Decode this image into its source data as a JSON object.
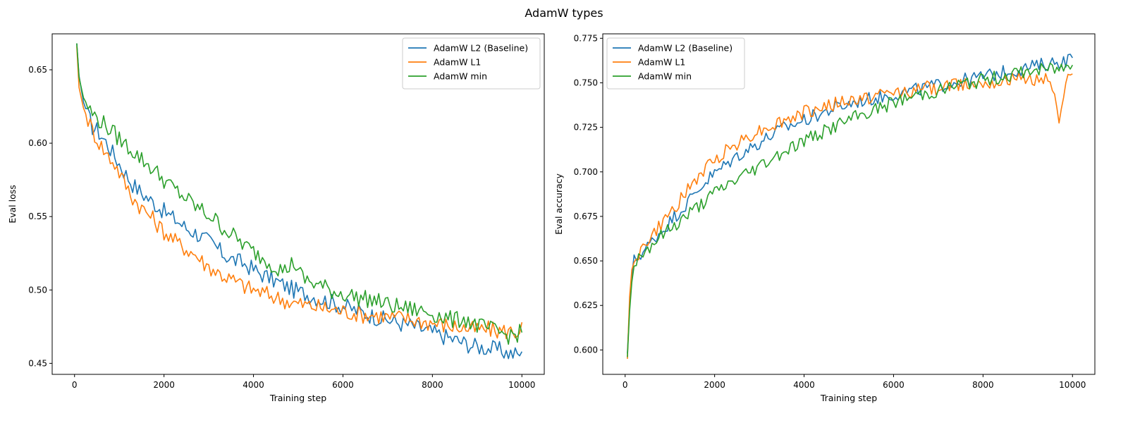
{
  "figure": {
    "title": "AdamW types"
  },
  "colors": {
    "L2": "#1f77b4",
    "L1": "#ff7f0e",
    "min": "#2ca02c"
  },
  "chart_data": [
    {
      "type": "line",
      "xlabel": "Training step",
      "ylabel": "Eval loss",
      "xlim": [
        -500,
        10500
      ],
      "ylim": [
        0.4425,
        0.6745
      ],
      "xticks": [
        0,
        2000,
        4000,
        6000,
        8000,
        10000
      ],
      "yticks": [
        0.45,
        0.5,
        0.55,
        0.6,
        0.65
      ],
      "ytick_labels": [
        "0.45",
        "0.50",
        "0.55",
        "0.60",
        "0.65"
      ],
      "legend_position": "upper right",
      "grid": false,
      "x": [
        50,
        100,
        200,
        300,
        400,
        500,
        700,
        900,
        1100,
        1300,
        1500,
        1700,
        1900,
        2100,
        2300,
        2500,
        2700,
        2900,
        3100,
        3300,
        3500,
        3700,
        3900,
        4100,
        4300,
        4500,
        4700,
        4900,
        5100,
        5300,
        5500,
        5700,
        5900,
        6100,
        6300,
        6500,
        6700,
        6900,
        7100,
        7300,
        7500,
        7700,
        7900,
        8100,
        8300,
        8500,
        8700,
        8900,
        9100,
        9300,
        9500,
        9700,
        9900,
        10000
      ],
      "series": [
        {
          "name": "AdamW L2 (Baseline)",
          "color": "#1f77b4",
          "values": [
            0.668,
            0.646,
            0.628,
            0.619,
            0.611,
            0.609,
            0.601,
            0.591,
            0.581,
            0.572,
            0.566,
            0.561,
            0.556,
            0.551,
            0.547,
            0.542,
            0.539,
            0.535,
            0.531,
            0.525,
            0.521,
            0.519,
            0.516,
            0.512,
            0.509,
            0.506,
            0.503,
            0.5,
            0.498,
            0.496,
            0.494,
            0.492,
            0.49,
            0.488,
            0.486,
            0.484,
            0.482,
            0.48,
            0.479,
            0.477,
            0.476,
            0.474,
            0.472,
            0.47,
            0.468,
            0.466,
            0.464,
            0.462,
            0.461,
            0.46,
            0.459,
            0.457,
            0.456,
            0.458
          ]
        },
        {
          "name": "AdamW L1",
          "color": "#ff7f0e",
          "values": [
            0.666,
            0.638,
            0.624,
            0.616,
            0.609,
            0.603,
            0.593,
            0.586,
            0.574,
            0.563,
            0.556,
            0.55,
            0.543,
            0.537,
            0.532,
            0.528,
            0.524,
            0.518,
            0.514,
            0.51,
            0.507,
            0.504,
            0.501,
            0.499,
            0.497,
            0.495,
            0.493,
            0.491,
            0.49,
            0.489,
            0.488,
            0.487,
            0.486,
            0.485,
            0.484,
            0.483,
            0.483,
            0.482,
            0.481,
            0.481,
            0.48,
            0.479,
            0.478,
            0.477,
            0.476,
            0.475,
            0.474,
            0.473,
            0.473,
            0.473,
            0.472,
            0.472,
            0.471,
            0.478
          ]
        },
        {
          "name": "AdamW min",
          "color": "#2ca02c",
          "values": [
            0.668,
            0.645,
            0.631,
            0.625,
            0.62,
            0.617,
            0.612,
            0.606,
            0.6,
            0.595,
            0.589,
            0.584,
            0.578,
            0.572,
            0.567,
            0.562,
            0.557,
            0.553,
            0.549,
            0.543,
            0.538,
            0.533,
            0.528,
            0.524,
            0.52,
            0.516,
            0.513,
            0.519,
            0.508,
            0.505,
            0.503,
            0.5,
            0.498,
            0.497,
            0.495,
            0.494,
            0.493,
            0.491,
            0.489,
            0.488,
            0.487,
            0.486,
            0.485,
            0.483,
            0.481,
            0.479,
            0.481,
            0.477,
            0.475,
            0.473,
            0.471,
            0.469,
            0.47,
            0.471
          ]
        }
      ]
    },
    {
      "type": "line",
      "xlabel": "Training step",
      "ylabel": "Eval accuracy",
      "xlim": [
        -500,
        10500
      ],
      "ylim": [
        0.5863,
        0.7775
      ],
      "xticks": [
        0,
        2000,
        4000,
        6000,
        8000,
        10000
      ],
      "yticks": [
        0.6,
        0.625,
        0.65,
        0.675,
        0.7,
        0.725,
        0.75,
        0.775
      ],
      "ytick_labels": [
        "0.600",
        "0.625",
        "0.650",
        "0.675",
        "0.700",
        "0.725",
        "0.750",
        "0.775"
      ],
      "legend_position": "upper left",
      "grid": false,
      "x": [
        50,
        100,
        150,
        200,
        300,
        400,
        500,
        700,
        900,
        1100,
        1300,
        1500,
        1700,
        1900,
        2100,
        2300,
        2500,
        2700,
        2900,
        3100,
        3300,
        3500,
        3700,
        3900,
        4100,
        4300,
        4500,
        4700,
        4900,
        5100,
        5300,
        5500,
        5700,
        5900,
        6100,
        6300,
        6500,
        6700,
        6900,
        7100,
        7300,
        7500,
        7700,
        7900,
        8100,
        8300,
        8500,
        8700,
        8900,
        9100,
        9300,
        9500,
        9700,
        9900,
        10000
      ],
      "series": [
        {
          "name": "AdamW L2 (Baseline)",
          "color": "#1f77b4",
          "values": [
            0.598,
            0.625,
            0.641,
            0.65,
            0.653,
            0.655,
            0.658,
            0.664,
            0.669,
            0.675,
            0.68,
            0.686,
            0.692,
            0.697,
            0.701,
            0.705,
            0.709,
            0.712,
            0.715,
            0.718,
            0.721,
            0.724,
            0.726,
            0.728,
            0.73,
            0.732,
            0.734,
            0.736,
            0.737,
            0.739,
            0.74,
            0.741,
            0.742,
            0.743,
            0.744,
            0.745,
            0.746,
            0.747,
            0.748,
            0.749,
            0.75,
            0.751,
            0.752,
            0.753,
            0.754,
            0.755,
            0.756,
            0.757,
            0.758,
            0.759,
            0.76,
            0.761,
            0.762,
            0.763,
            0.764
          ]
        },
        {
          "name": "AdamW L1",
          "color": "#ff7f0e",
          "values": [
            0.595,
            0.63,
            0.645,
            0.652,
            0.654,
            0.657,
            0.661,
            0.667,
            0.673,
            0.68,
            0.686,
            0.693,
            0.699,
            0.704,
            0.709,
            0.713,
            0.716,
            0.719,
            0.722,
            0.724,
            0.726,
            0.728,
            0.73,
            0.732,
            0.734,
            0.735,
            0.737,
            0.738,
            0.739,
            0.74,
            0.741,
            0.742,
            0.743,
            0.744,
            0.745,
            0.745,
            0.746,
            0.747,
            0.747,
            0.748,
            0.749,
            0.749,
            0.75,
            0.75,
            0.751,
            0.751,
            0.751,
            0.752,
            0.752,
            0.752,
            0.753,
            0.753,
            0.73,
            0.753,
            0.755
          ]
        },
        {
          "name": "AdamW min",
          "color": "#2ca02c",
          "values": [
            0.596,
            0.622,
            0.638,
            0.648,
            0.652,
            0.655,
            0.657,
            0.662,
            0.666,
            0.67,
            0.674,
            0.678,
            0.682,
            0.686,
            0.69,
            0.693,
            0.696,
            0.699,
            0.702,
            0.705,
            0.708,
            0.711,
            0.714,
            0.716,
            0.719,
            0.721,
            0.723,
            0.726,
            0.728,
            0.73,
            0.732,
            0.734,
            0.736,
            0.738,
            0.74,
            0.741,
            0.743,
            0.744,
            0.745,
            0.746,
            0.748,
            0.749,
            0.75,
            0.751,
            0.752,
            0.753,
            0.754,
            0.755,
            0.756,
            0.757,
            0.757,
            0.758,
            0.758,
            0.759,
            0.76
          ]
        }
      ]
    }
  ]
}
